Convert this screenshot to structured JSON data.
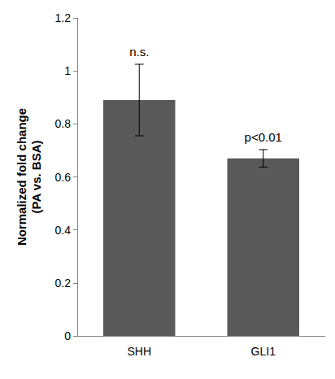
{
  "chart_data": {
    "type": "bar",
    "y_label": "Normalized fold change\n(PA vs. BSA)",
    "categories": [
      "SHH",
      "GLI1"
    ],
    "values": [
      0.89,
      0.67
    ],
    "errors": [
      0.135,
      0.033
    ],
    "annotations": [
      "n.s.",
      "p<0.01"
    ],
    "color": "#595959",
    "ylim": [
      0,
      1.2
    ],
    "yticks": [
      0,
      0.2,
      0.4,
      0.6,
      0.8,
      1,
      1.2
    ],
    "grid": false
  }
}
